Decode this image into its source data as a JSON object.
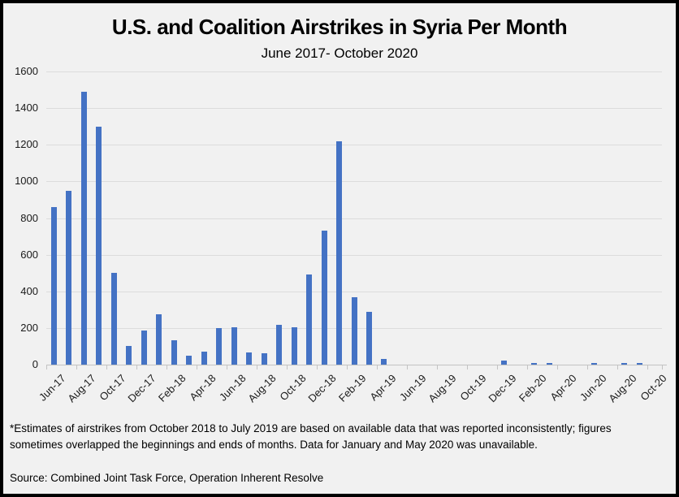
{
  "window": {
    "background_color": "#F1F1F1",
    "border_color": "#000000"
  },
  "chart_data": {
    "type": "bar",
    "title": "U.S. and Coalition Airstrikes in Syria Per Month",
    "subtitle": "June 2017- October 2020",
    "xlabel": "",
    "ylabel": "",
    "ylim": [
      0,
      1600
    ],
    "yticks": [
      0,
      200,
      400,
      600,
      800,
      1000,
      1200,
      1400,
      1600
    ],
    "grid": true,
    "legend": "none",
    "bar_color": "#4472C4",
    "gridline_color": "#DCDCDC",
    "axis_color": "#C3C3C3",
    "categories": [
      "Jun-17",
      "Jul-17",
      "Aug-17",
      "Sep-17",
      "Oct-17",
      "Nov-17",
      "Dec-17",
      "Jan-18",
      "Feb-18",
      "Mar-18",
      "Apr-18",
      "May-18",
      "Jun-18",
      "Jul-18",
      "Aug-18",
      "Sep-18",
      "Oct-18",
      "Nov-18",
      "Dec-18",
      "Jan-19",
      "Feb-19",
      "Mar-19",
      "Apr-19",
      "May-19",
      "Jun-19",
      "Jul-19",
      "Aug-19",
      "Sep-19",
      "Oct-19",
      "Nov-19",
      "Dec-19",
      "Jan-20",
      "Feb-20",
      "Mar-20",
      "Apr-20",
      "May-20",
      "Jun-20",
      "Jul-20",
      "Aug-20",
      "Sep-20",
      "Oct-20"
    ],
    "values": [
      860,
      950,
      1490,
      1300,
      500,
      100,
      185,
      275,
      135,
      50,
      70,
      200,
      205,
      65,
      60,
      215,
      205,
      490,
      730,
      1220,
      370,
      290,
      30,
      0,
      0,
      0,
      0,
      0,
      0,
      0,
      20,
      0,
      10,
      10,
      0,
      0,
      10,
      0,
      10,
      10,
      0
    ],
    "x_axis_tick_labels": [
      "Jun-17",
      "Aug-17",
      "Oct-17",
      "Dec-17",
      "Feb-18",
      "Apr-18",
      "Jun-18",
      "Aug-18",
      "Oct-18",
      "Dec-18",
      "Feb-19",
      "Apr-19",
      "Jun-19",
      "Aug-19",
      "Oct-19",
      "Dec-19",
      "Feb-20",
      "Apr-20",
      "Jun-20",
      "Aug-20",
      "Oct-20"
    ]
  },
  "footnote": "*Estimates of airstrikes from October 2018 to July 2019  are based on available data that was reported inconsistently; figures sometimes overlapped the beginnings and ends of months. Data for January and May 2020  was unavailable.",
  "source": "Source: Combined Joint Task Force, Operation Inherent Resolve"
}
